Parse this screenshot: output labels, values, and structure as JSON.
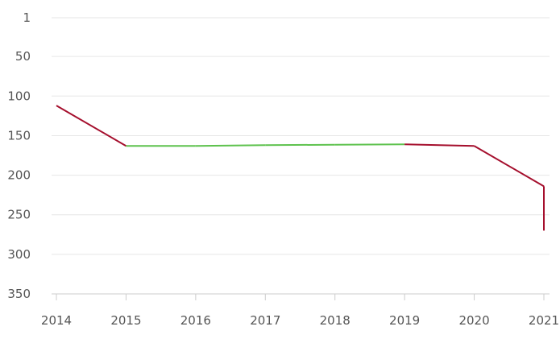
{
  "chart_data": {
    "type": "line",
    "title": "",
    "xlabel": "",
    "ylabel": "",
    "y_reversed": true,
    "ylim": [
      1,
      350
    ],
    "y_ticks": [
      1,
      50,
      100,
      150,
      200,
      250,
      300,
      350
    ],
    "y_tick_labels": [
      "1",
      "50",
      "100",
      "150",
      "200",
      "250",
      "300",
      "350"
    ],
    "categories": [
      "2014",
      "2015",
      "2016",
      "2017",
      "2018",
      "2019",
      "2020",
      "2021"
    ],
    "series": [
      {
        "points": [
          {
            "x": 2014,
            "y": 112
          },
          {
            "x": 2015,
            "y": 163
          },
          {
            "x": 2016,
            "y": 163
          },
          {
            "x": 2017,
            "y": 162
          },
          {
            "x": 2018,
            "y": 161.5
          },
          {
            "x": 2019,
            "y": 161
          },
          {
            "x": 2020,
            "y": 163
          },
          {
            "x": 2021,
            "y": 214
          },
          {
            "x": 2021,
            "y": 270
          }
        ],
        "segment_colors": [
          "#a50f2d",
          "#5ec24e",
          "#5ec24e",
          "#5ec24e",
          "#5ec24e",
          "#a50f2d",
          "#a50f2d",
          "#a50f2d"
        ]
      }
    ],
    "colors": {
      "decline": "#a50f2d",
      "improve": "#5ec24e"
    },
    "grid": true,
    "legend": "none"
  }
}
